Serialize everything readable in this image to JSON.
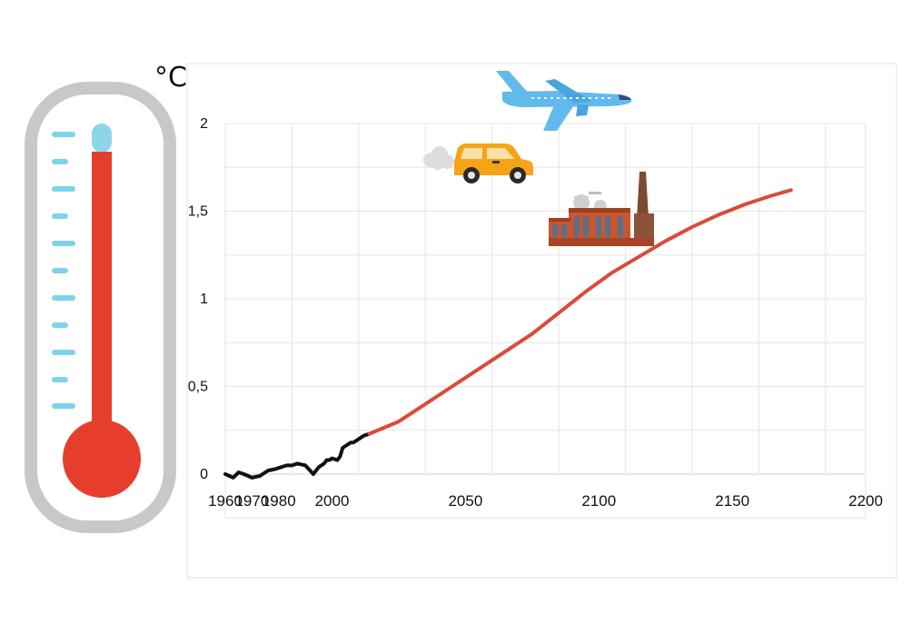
{
  "unit_label": "°C",
  "colors": {
    "historical": "#111111",
    "projection": "#db4a3a",
    "thermometer_outline": "#c8c8c8",
    "thermometer_red": "#e63e2d",
    "thermometer_tip": "#8dd6ea",
    "thermometer_ticks": "#7fd2ea"
  },
  "icons": {
    "airplane": "airplane-icon",
    "car": "car-icon",
    "factory": "factory-icon",
    "thermometer": "thermometer-icon"
  },
  "chart_data": {
    "type": "line",
    "title": "",
    "xlabel": "",
    "ylabel": "°C",
    "xlim": [
      1960,
      2200
    ],
    "ylim": [
      0,
      2
    ],
    "grid": true,
    "x_ticks": [
      1960,
      1970,
      1980,
      2000,
      2050,
      2100,
      2150,
      2200
    ],
    "x_tick_labels": [
      "1960",
      "1970",
      "1980",
      "2000",
      "2050",
      "2100",
      "2150",
      "2200"
    ],
    "y_ticks": [
      0,
      0.5,
      1,
      1.5,
      2
    ],
    "y_tick_labels": [
      "0",
      "0,5",
      "1",
      "1,5",
      "2"
    ],
    "series": [
      {
        "role": "historical",
        "x": [
          1960,
          1963,
          1965,
          1967,
          1970,
          1973,
          1976,
          1979,
          1981,
          1983,
          1984,
          1985,
          1987,
          1990,
          1993,
          1995,
          1997,
          1998,
          1999,
          2000,
          2002,
          2003,
          2004,
          2005,
          2006,
          2007,
          2008,
          2009,
          2010,
          2011,
          2012,
          2014
        ],
        "y": [
          0,
          -0.02,
          0.01,
          0,
          -0.02,
          -0.01,
          0.02,
          0.03,
          0.04,
          0.05,
          0.05,
          0.05,
          0.06,
          0.05,
          0,
          0.04,
          0.06,
          0.08,
          0.08,
          0.09,
          0.08,
          0.1,
          0.15,
          0.16,
          0.17,
          0.18,
          0.18,
          0.19,
          0.2,
          0.21,
          0.22,
          0.23
        ]
      },
      {
        "role": "projection",
        "x": [
          2014,
          2025,
          2035,
          2045,
          2055,
          2065,
          2075,
          2085,
          2095,
          2105,
          2115,
          2125,
          2135,
          2145,
          2155,
          2165,
          2172
        ],
        "y": [
          0.23,
          0.3,
          0.4,
          0.5,
          0.6,
          0.7,
          0.8,
          0.92,
          1.04,
          1.15,
          1.24,
          1.33,
          1.41,
          1.48,
          1.54,
          1.59,
          1.62
        ]
      }
    ]
  }
}
